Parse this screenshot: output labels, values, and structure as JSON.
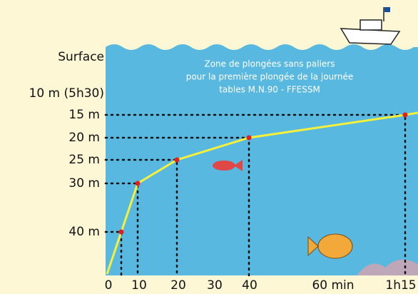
{
  "y_labels": [
    "Surface",
    "10 m (5h30)",
    "15 m",
    "20 m",
    "25 m",
    "30 m",
    "40 m"
  ],
  "x_labels": [
    "0",
    "10",
    "20",
    "30",
    "40",
    "60 min",
    "1h15"
  ],
  "caption": [
    "Zone de plongées sans paliers",
    "pour la première plongée de la journée",
    "tables M.N.90 - FFESSM"
  ]
}
